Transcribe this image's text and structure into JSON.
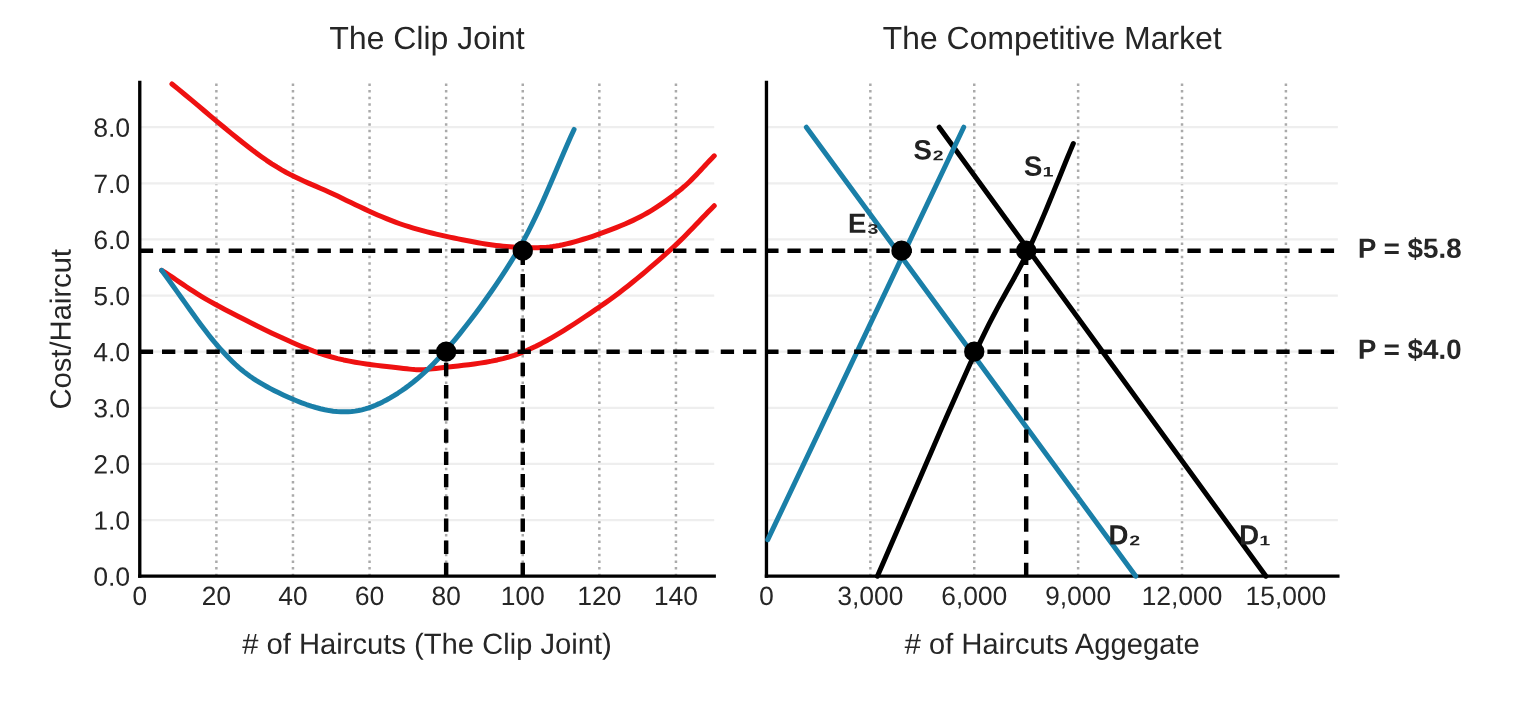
{
  "chart_data": [
    {
      "type": "line",
      "title": "The Clip Joint",
      "xlabel": "# of Haircuts (The Clip Joint)",
      "ylabel": "Cost/Haircut",
      "xlim": [
        0,
        150
      ],
      "xticks": [
        0,
        20,
        40,
        60,
        80,
        100,
        120,
        140
      ],
      "ylim": [
        0,
        8.8
      ],
      "yticks": [
        {
          "value": 0,
          "label": "0.0"
        },
        {
          "value": 1,
          "label": "1.0"
        },
        {
          "value": 2,
          "label": "2.0"
        },
        {
          "value": 3,
          "label": "3.0"
        },
        {
          "value": 4,
          "label": "4.0"
        },
        {
          "value": 5,
          "label": "5.0"
        },
        {
          "value": 6,
          "label": "6.0"
        },
        {
          "value": 7,
          "label": "7.0"
        },
        {
          "value": 8,
          "label": "8.0"
        }
      ],
      "grid": true,
      "legend": false,
      "ref_lines": [
        {
          "axis": "y",
          "value": 5.8,
          "color": "#000000",
          "line_style": "dashed"
        },
        {
          "axis": "y",
          "value": 4.0,
          "color": "#000000",
          "line_style": "dashed"
        }
      ],
      "series": [
        {
          "type": "line",
          "color": "#ee1111",
          "x": [
            8.4,
            33.1,
            50.5,
            67.9,
            85.3,
            99.2,
            111.4,
            128.8,
            140.9,
            150
          ],
          "values": [
            8.77,
            7.41,
            6.81,
            6.28,
            5.98,
            5.86,
            5.92,
            6.34,
            6.87,
            7.49
          ]
        },
        {
          "type": "line",
          "color": "#ee1111",
          "x": [
            5.7,
            20.9,
            47,
            67.9,
            78.3,
            99.2,
            120.1,
            137.5,
            150
          ],
          "values": [
            5.45,
            4.8,
            3.97,
            3.71,
            3.71,
            3.97,
            4.8,
            5.75,
            6.6
          ]
        },
        {
          "type": "line",
          "color": "#1a7fa8",
          "x": [
            5.7,
            20.9,
            33.1,
            50.5,
            64.4,
            80,
            99.2,
            113.4
          ],
          "values": [
            5.45,
            4.06,
            3.38,
            2.94,
            3.14,
            4.03,
            5.86,
            7.96
          ]
        },
        {
          "type": "line",
          "color": "#000000",
          "line_style": "dashed",
          "x": [
            80,
            80
          ],
          "values": [
            0,
            4.0
          ]
        },
        {
          "type": "line",
          "color": "#000000",
          "line_style": "dashed",
          "x": [
            100,
            100
          ],
          "values": [
            0,
            5.8
          ]
        },
        {
          "type": "scatter",
          "color": "#000000",
          "marker": "circle",
          "x": [
            80,
            100
          ],
          "values": [
            4.0,
            5.8
          ]
        }
      ]
    },
    {
      "type": "line",
      "title": "The Competitive Market",
      "xlabel": "# of Haircuts Aggegate",
      "xlim": [
        0,
        16500
      ],
      "xticks": [
        0,
        {
          "value": 3000,
          "label": "3,000"
        },
        {
          "value": 6000,
          "label": "6,000"
        },
        {
          "value": 9000,
          "label": "9,000"
        },
        {
          "value": 12000,
          "label": "12,000"
        },
        {
          "value": 15000,
          "label": "15,000"
        }
      ],
      "ylim": [
        0,
        8.8
      ],
      "yticks": [
        0,
        1,
        2,
        3,
        4,
        5,
        6,
        7,
        8
      ],
      "tick_labels": "x",
      "grid": true,
      "legend": false,
      "ref_lines": [
        {
          "axis": "y",
          "value": 5.8,
          "label": "P = $5.8",
          "color": "#000000",
          "line_style": "dashed"
        },
        {
          "axis": "y",
          "value": 4.0,
          "label": "P = $4.0",
          "color": "#000000",
          "line_style": "dashed"
        }
      ],
      "series": [
        {
          "type": "line",
          "name": "D₁",
          "color": "#000000",
          "x": [
            4987,
            14424
          ],
          "values": [
            8.0,
            0
          ]
        },
        {
          "type": "line",
          "name": "S₁",
          "color": "#000000",
          "x": [
            3203,
            6042,
            7557,
            8861
          ],
          "values": [
            0,
            4.0,
            5.8,
            7.71
          ]
        },
        {
          "type": "line",
          "name": "D₂",
          "color": "#1a7fa8",
          "x": [
            1151,
            10664
          ],
          "values": [
            8.0,
            0
          ]
        },
        {
          "type": "line",
          "name": "S₂",
          "color": "#1a7fa8",
          "x": [
            38,
            5696
          ],
          "values": [
            0.65,
            8.0
          ]
        },
        {
          "type": "line",
          "color": "#000000",
          "line_style": "dashed",
          "x": [
            7500,
            7500
          ],
          "values": [
            0,
            5.8
          ]
        },
        {
          "type": "scatter",
          "color": "#000000",
          "marker": "circle",
          "x": [
            6000,
            7500
          ],
          "values": [
            4.0,
            5.8
          ]
        },
        {
          "type": "scatter",
          "name": "E₃",
          "color": "#000000",
          "marker": "circle",
          "x": [
            3900
          ],
          "values": [
            5.8
          ]
        }
      ]
    }
  ]
}
